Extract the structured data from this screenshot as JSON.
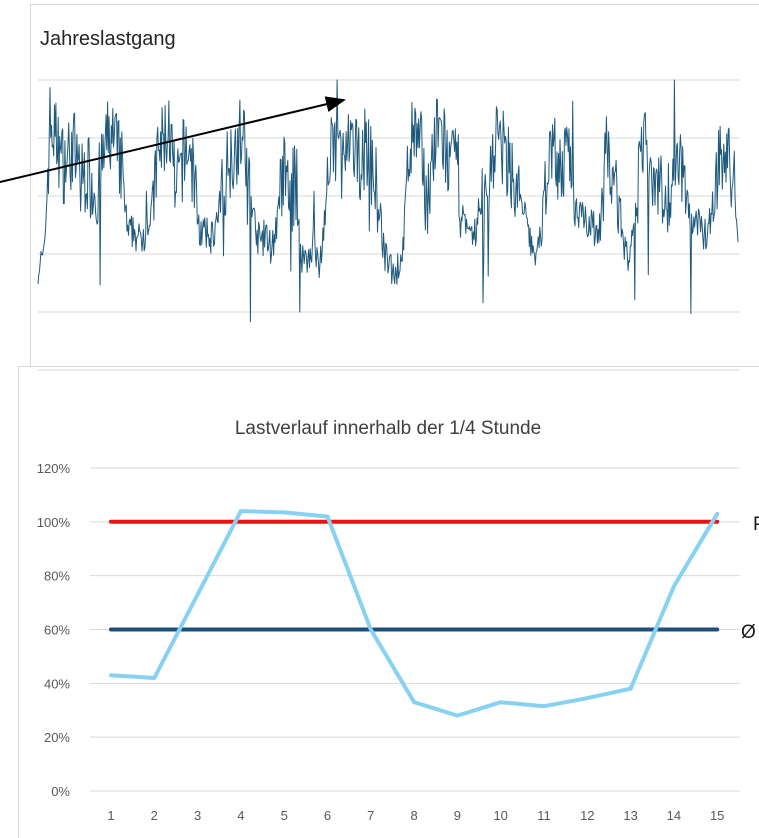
{
  "chart_data": [
    {
      "type": "line",
      "title": "Jahreslastgang",
      "xlabel": "",
      "ylabel": "",
      "grid": true,
      "series": [
        {
          "values": [
            38,
            40,
            86,
            80,
            72,
            74,
            78,
            64,
            70,
            66,
            62,
            75,
            82,
            78,
            70,
            48,
            50,
            46,
            50,
            56,
            74,
            80,
            84,
            60,
            72,
            78,
            70,
            50,
            48,
            48,
            52,
            66,
            74,
            78,
            82,
            72,
            54,
            46,
            48,
            44,
            52,
            70,
            60,
            66,
            42,
            40,
            46,
            36,
            56,
            74,
            80,
            72,
            76,
            74,
            74,
            78,
            70,
            58,
            40,
            38,
            36,
            44,
            76,
            82,
            76,
            60,
            74,
            84,
            78,
            68,
            74,
            54,
            46,
            48,
            60,
            62,
            76,
            82,
            74,
            72,
            62,
            58,
            48,
            42,
            46,
            70,
            80,
            72,
            70,
            76,
            56,
            58,
            52,
            50,
            52,
            76,
            66,
            62,
            44,
            40,
            56,
            80,
            74,
            70,
            66,
            58,
            70,
            78,
            68,
            52,
            54,
            48,
            50,
            60,
            76,
            72,
            70,
            50
          ]
        }
      ],
      "color": "#1f5a7e",
      "annotation": "arrow"
    },
    {
      "type": "line",
      "title": "Lastverlauf innerhalb der 1/4 Stunde",
      "xlabel": "",
      "ylabel": "",
      "categories": [
        "1",
        "2",
        "3",
        "4",
        "5",
        "6",
        "7",
        "8",
        "9",
        "10",
        "11",
        "12",
        "13",
        "14",
        "15"
      ],
      "ylim": [
        0,
        1.2
      ],
      "yticks": [
        "0%",
        "20%",
        "40%",
        "60%",
        "80%",
        "100%",
        "120%"
      ],
      "grid": true,
      "series": [
        {
          "label": "",
          "color": "#87d1f2",
          "values": [
            0.43,
            0.42,
            0.73,
            1.04,
            1.035,
            1.02,
            0.6,
            0.33,
            0.28,
            0.33,
            0.315,
            0.345,
            0.38,
            0.76,
            1.03
          ]
        },
        {
          "label": "",
          "color": "#ee1111",
          "values": [
            1.0,
            1.0,
            1.0,
            1.0,
            1.0,
            1.0,
            1.0,
            1.0,
            1.0,
            1.0,
            1.0,
            1.0,
            1.0,
            1.0,
            1.0
          ]
        },
        {
          "label": "",
          "color": "#1f4e79",
          "values": [
            0.6,
            0.6,
            0.6,
            0.6,
            0.6,
            0.6,
            0.6,
            0.6,
            0.6,
            0.6,
            0.6,
            0.6,
            0.6,
            0.6,
            0.6
          ]
        }
      ],
      "side_labels": [
        "P",
        "Ø"
      ]
    }
  ]
}
